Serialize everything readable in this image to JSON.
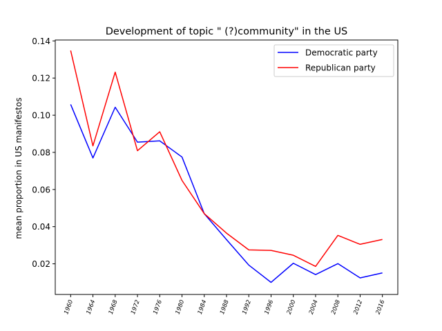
{
  "chart_data": {
    "type": "line",
    "title": "Development of topic \" (?)community\" in the US",
    "ylabel": "mean proportion in US manifestos",
    "xlabel": "",
    "x": [
      "1960",
      "1964",
      "1968",
      "1972",
      "1976",
      "1980",
      "1984",
      "1988",
      "1992",
      "1996",
      "2000",
      "2004",
      "2008",
      "2012",
      "2016"
    ],
    "ylim": [
      0.0035,
      0.1405
    ],
    "yticks": [
      0.02,
      0.04,
      0.06,
      0.08,
      0.1,
      0.12,
      0.14
    ],
    "ytick_labels": [
      "0.02",
      "0.04",
      "0.06",
      "0.08",
      "0.10",
      "0.12",
      "0.14"
    ],
    "grid": false,
    "legend_position": "top-right",
    "series": [
      {
        "name": "Democratic party",
        "color": "#0000ff",
        "values": [
          0.1058,
          0.077,
          0.1043,
          0.0855,
          0.0862,
          0.0775,
          0.047,
          0.033,
          0.0193,
          0.01,
          0.0203,
          0.0142,
          0.0201,
          0.0124,
          0.0151
        ]
      },
      {
        "name": "Republican party",
        "color": "#ff0000",
        "values": [
          0.1348,
          0.0835,
          0.1232,
          0.0809,
          0.0911,
          0.0649,
          0.047,
          0.0365,
          0.0275,
          0.0272,
          0.0246,
          0.0186,
          0.0353,
          0.0305,
          0.0331
        ]
      }
    ]
  }
}
